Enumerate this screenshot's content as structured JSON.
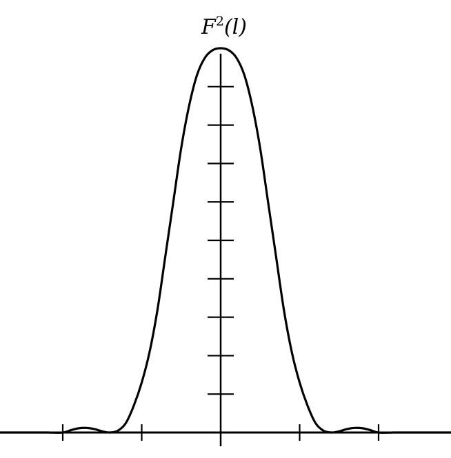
{
  "chart_data": {
    "type": "line",
    "title": "",
    "ylabel_base": "F",
    "ylabel_exponent": "2",
    "ylabel_argument": "(l)",
    "xlabel": "",
    "grid": false,
    "legend": "none",
    "color": "#000000",
    "xlim": [
      -1.4,
      1.5
    ],
    "ylim": [
      0,
      10
    ],
    "x_ticks": [
      -1,
      -0.5,
      0.5,
      1
    ],
    "y_ticks": [
      1,
      2,
      3,
      4,
      5,
      6,
      7,
      8,
      9
    ],
    "series": [
      {
        "x": [
          -1.42,
          -1.3,
          -1.2,
          -1.1,
          -1.0,
          -0.95,
          -0.9,
          -0.85,
          -0.8,
          -0.75,
          -0.7,
          -0.65,
          -0.6,
          -0.55,
          -0.5,
          -0.45,
          -0.4,
          -0.35,
          -0.3,
          -0.25,
          -0.2,
          -0.15,
          -0.1,
          -0.05,
          0,
          0.05,
          0.1,
          0.15,
          0.2,
          0.25,
          0.3,
          0.35,
          0.4,
          0.45,
          0.5,
          0.55,
          0.6,
          0.65,
          0.7,
          0.75,
          0.8,
          0.85,
          0.9,
          0.95,
          1.0,
          1.1,
          1.2,
          1.3,
          1.4,
          1.5
        ],
        "y": [
          0,
          0,
          0,
          0,
          0,
          0.06,
          0.11,
          0.12,
          0.09,
          0.03,
          0.0,
          0.05,
          0.25,
          0.7,
          1.3,
          2.1,
          3.2,
          4.6,
          6.0,
          7.4,
          8.5,
          9.3,
          9.75,
          9.95,
          10.0,
          9.95,
          9.75,
          9.3,
          8.5,
          7.4,
          6.0,
          4.6,
          3.2,
          2.1,
          1.3,
          0.7,
          0.25,
          0.05,
          0.0,
          0.03,
          0.09,
          0.12,
          0.11,
          0.06,
          0,
          0,
          0,
          0,
          0,
          0
        ]
      }
    ]
  }
}
